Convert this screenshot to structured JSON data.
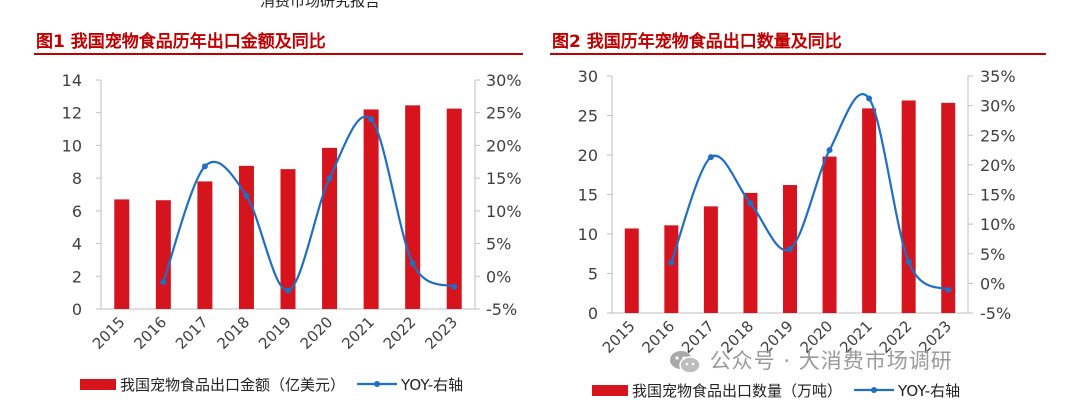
{
  "header_fragment": "消费市场研究报告",
  "watermark": {
    "text": "公众号 · 大消费市场调研",
    "icon": "wechat-icon"
  },
  "colors": {
    "bar": "#d5141d",
    "line": "#1f6fc2",
    "title": "#c00000",
    "axis": "#bfbfbf",
    "text": "#404040"
  },
  "chart_data": [
    {
      "id": "fig1",
      "title": "图1  我国宠物食品历年出口金额及同比",
      "type": "bar+line",
      "categories": [
        "2015",
        "2016",
        "2017",
        "2018",
        "2019",
        "2020",
        "2021",
        "2022",
        "2023"
      ],
      "series": [
        {
          "name": "我国宠物食品出口金额（亿美元）",
          "axis": "left",
          "type": "bar",
          "values": [
            6.7,
            6.65,
            7.8,
            8.75,
            8.55,
            9.85,
            12.2,
            12.45,
            12.25
          ]
        },
        {
          "name": "YOY-右轴",
          "axis": "right",
          "type": "line",
          "values": [
            null,
            -0.9,
            16.8,
            12.3,
            -2.2,
            15.0,
            24.0,
            2.0,
            -1.6
          ]
        }
      ],
      "yleft": {
        "min": 0,
        "max": 14,
        "step": 2,
        "ticks": [
          "0",
          "2",
          "4",
          "6",
          "8",
          "10",
          "12",
          "14"
        ]
      },
      "yright": {
        "min": -5,
        "max": 30,
        "step": 5,
        "ticks": [
          "-5%",
          "0%",
          "5%",
          "10%",
          "15%",
          "20%",
          "25%",
          "30%"
        ]
      },
      "legend": {
        "bar": "我国宠物食品出口金额（亿美元）",
        "line": "YOY-右轴"
      }
    },
    {
      "id": "fig2",
      "title": "图2  我国历年宠物食品出口数量及同比",
      "type": "bar+line",
      "categories": [
        "2015",
        "2016",
        "2017",
        "2018",
        "2019",
        "2020",
        "2021",
        "2022",
        "2023"
      ],
      "series": [
        {
          "name": "我国宠物食品出口数量（万吨）",
          "axis": "left",
          "type": "bar",
          "values": [
            10.7,
            11.1,
            13.5,
            15.2,
            16.2,
            19.8,
            25.9,
            26.9,
            26.6
          ]
        },
        {
          "name": "YOY-右轴",
          "axis": "right",
          "type": "line",
          "values": [
            null,
            3.5,
            21.3,
            13.5,
            5.8,
            22.5,
            31.2,
            3.6,
            -1.1
          ]
        }
      ],
      "yleft": {
        "min": 0,
        "max": 30,
        "step": 5,
        "ticks": [
          "0",
          "5",
          "10",
          "15",
          "20",
          "25",
          "30"
        ]
      },
      "yright": {
        "min": -5,
        "max": 35,
        "step": 5,
        "ticks": [
          "-5%",
          "0%",
          "5%",
          "10%",
          "15%",
          "20%",
          "25%",
          "30%",
          "35%"
        ]
      },
      "legend": {
        "bar": "我国宠物食品出口数量（万吨）",
        "line": "YOY-右轴"
      }
    }
  ]
}
